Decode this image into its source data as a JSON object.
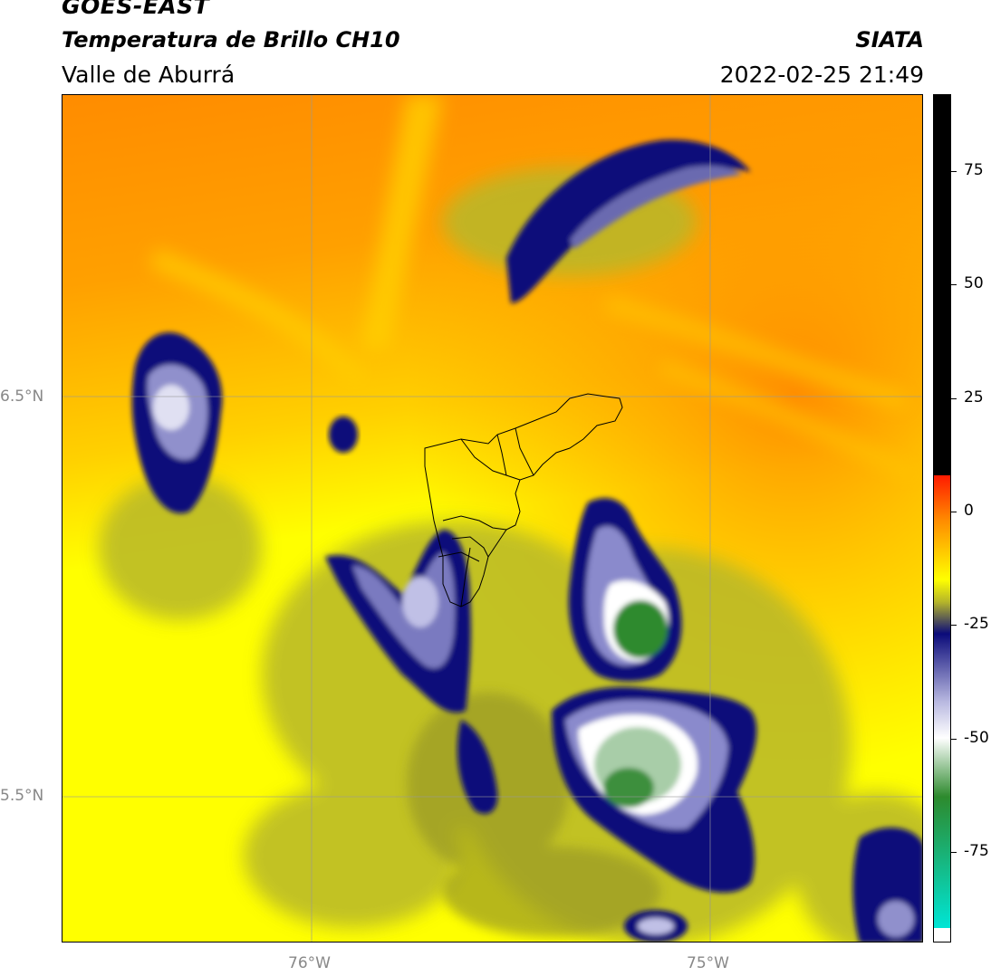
{
  "header": {
    "satellite": "GOES-EAST",
    "product": "Temperatura de Brillo CH10",
    "region": "Valle de Aburrá",
    "agency": "SIATA",
    "datetime": "2022-02-25 21:49"
  },
  "axes": {
    "lat_ticks": [
      "6.5°N",
      "5.5°N"
    ],
    "lon_ticks": [
      "76°W",
      "75°W"
    ]
  },
  "colorbar": {
    "ticks": [
      "75",
      "50",
      "25",
      "0",
      "-25",
      "-50",
      "-75"
    ],
    "tick_values": [
      75,
      50,
      25,
      0,
      -25,
      -50,
      -75
    ],
    "range": [
      -95,
      92
    ],
    "colors": {
      "top": "#000000",
      "red": "#ff1a00",
      "orange": "#ff8c00",
      "yellow": "#ffff00",
      "olive": "#b5b52a",
      "navy": "#0b0b7a",
      "lavender": "#b8b8e0",
      "white": "#ffffff",
      "green": "#2d8a2d",
      "cyan": "#00e5d5"
    }
  }
}
